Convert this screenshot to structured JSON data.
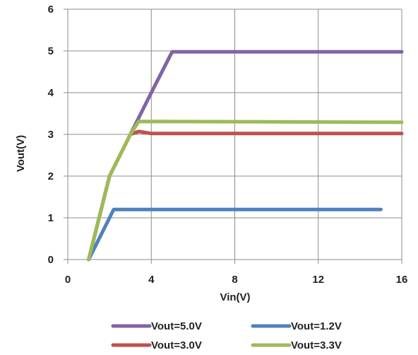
{
  "chart_data": {
    "type": "line",
    "title": "",
    "xlabel": "Vin(V)",
    "ylabel": "Vout(V)",
    "xlim": [
      0,
      16
    ],
    "ylim": [
      0,
      6
    ],
    "xticks": [
      0,
      4,
      8,
      12,
      16
    ],
    "yticks": [
      0,
      1,
      2,
      3,
      4,
      5,
      6
    ],
    "grid": true,
    "legend_position": "bottom",
    "series": [
      {
        "name": "Vout=5.0V",
        "color": "#8064a2",
        "x": [
          1,
          2,
          3,
          4,
          5,
          16
        ],
        "y": [
          0,
          2.0,
          3.0,
          4.0,
          4.98,
          4.98
        ]
      },
      {
        "name": "Vout=1.2V",
        "color": "#4f81bd",
        "x": [
          1,
          2.2,
          15
        ],
        "y": [
          0,
          1.2,
          1.2
        ]
      },
      {
        "name": "Vout=3.0V",
        "color": "#c0504d",
        "x": [
          1,
          2,
          3,
          3.4,
          4,
          16
        ],
        "y": [
          0,
          2.0,
          3.0,
          3.07,
          3.02,
          3.02
        ]
      },
      {
        "name": "Vout=3.3V",
        "color": "#9bbb59",
        "x": [
          1,
          2,
          3,
          3.4,
          16
        ],
        "y": [
          0,
          2.0,
          3.0,
          3.31,
          3.29
        ]
      }
    ]
  }
}
